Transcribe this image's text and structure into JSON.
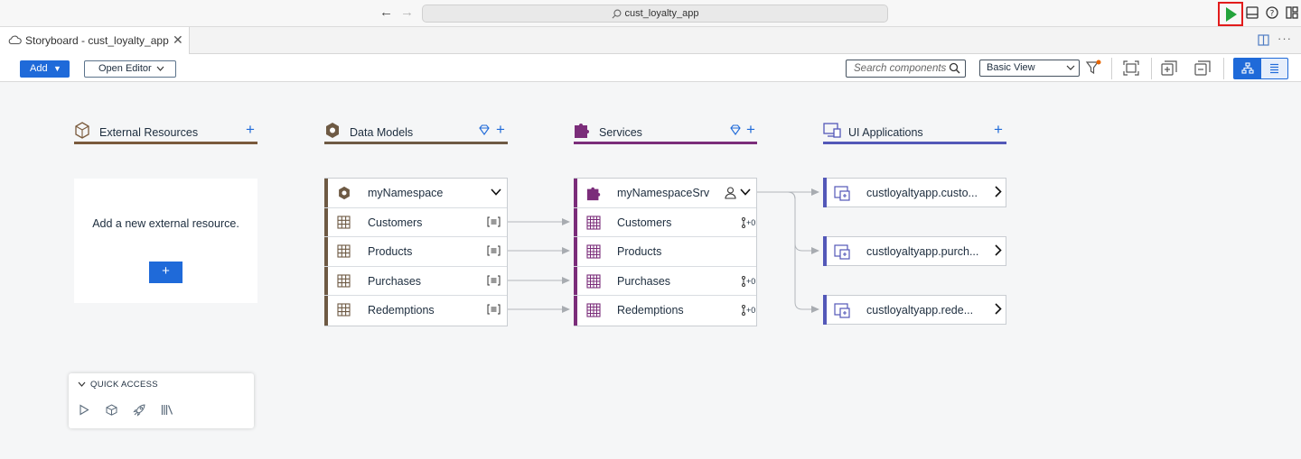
{
  "titlebar": {
    "command_center": "cust_loyalty_app",
    "back_icon": "arrow-left-icon",
    "forward_icon": "arrow-right-icon",
    "run_icon": "play-icon",
    "run_color": "#22a33b",
    "highlight_color": "#e21b1b"
  },
  "tab": {
    "title": "Storyboard - cust_loyalty_app",
    "close": "✕"
  },
  "toolbar": {
    "add_label": "Add",
    "open_editor_label": "Open Editor",
    "search_placeholder": "Search components",
    "view_selected": "Basic View",
    "accent": "#1f6ad9"
  },
  "columns": {
    "external": {
      "title": "External Resources",
      "color": "#7a5a3c"
    },
    "models": {
      "title": "Data Models",
      "color": "#6e5a44"
    },
    "services": {
      "title": "Services",
      "color": "#7b2d7a"
    },
    "ui": {
      "title": "UI Applications",
      "color": "#5358b8"
    }
  },
  "external_card": {
    "message": "Add a new external resource.",
    "add": "+"
  },
  "data_model": {
    "namespace": "myNamespace",
    "entities": [
      "Customers",
      "Products",
      "Purchases",
      "Redemptions"
    ]
  },
  "service": {
    "name": "myNamespaceSrv",
    "entities": [
      {
        "name": "Customers",
        "badge": "+0"
      },
      {
        "name": "Products",
        "badge": ""
      },
      {
        "name": "Purchases",
        "badge": "+0"
      },
      {
        "name": "Redemptions",
        "badge": "+0"
      }
    ]
  },
  "ui_apps": [
    "custloyaltyapp.custo...",
    "custloyaltyapp.purch...",
    "custloyaltyapp.rede..."
  ],
  "quick_access": {
    "title": "QUICK ACCESS",
    "icons": [
      "run-icon",
      "cube-icon",
      "deploy-rocket-icon",
      "library-icon"
    ]
  }
}
